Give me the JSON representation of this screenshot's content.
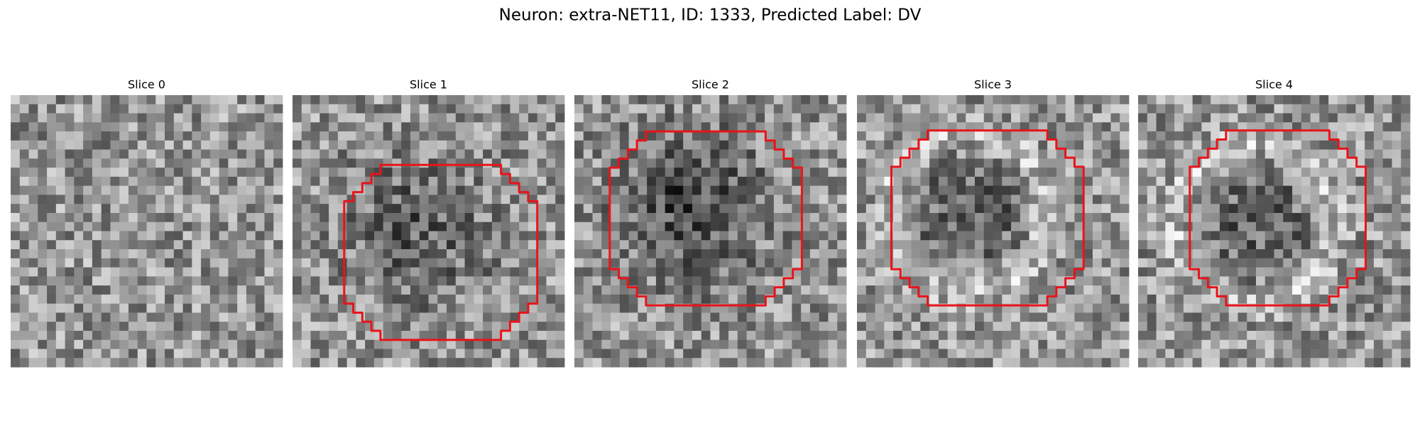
{
  "title": "Neuron: extra-NET11, ID: 1333, Predicted Label: DV",
  "panels": [
    {
      "title": "Slice 0"
    },
    {
      "title": "Slice 1"
    },
    {
      "title": "Slice 2"
    },
    {
      "title": "Slice 3"
    },
    {
      "title": "Slice 4"
    }
  ]
}
